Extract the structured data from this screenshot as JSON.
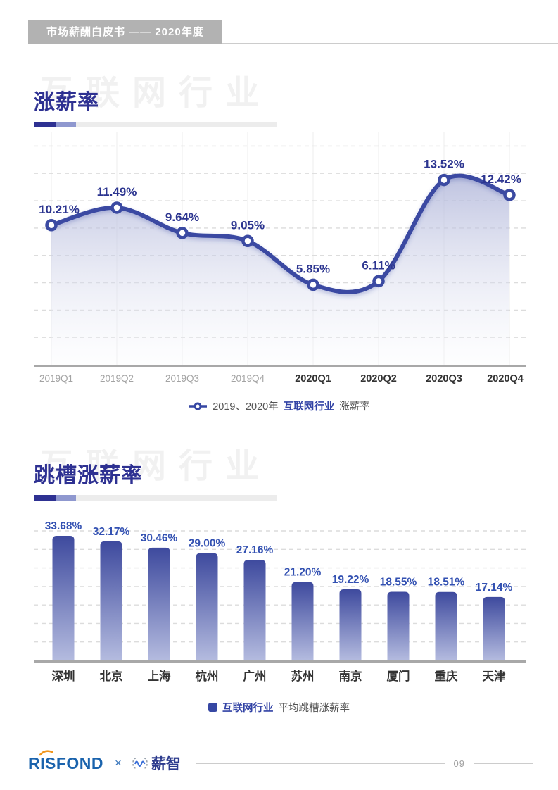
{
  "header": {
    "badge": "市场薪酬白皮书 —— 2020年度"
  },
  "sections": [
    {
      "watermark": "互联网行业",
      "title": "涨薪率"
    },
    {
      "watermark": "互联网行业",
      "title": "跳槽涨薪率"
    }
  ],
  "legend1": {
    "prefix": "2019、2020年",
    "accent": "互联网行业",
    "suffix": "涨薪率"
  },
  "legend2": {
    "accent": "互联网行业",
    "suffix": "平均跳槽涨薪率"
  },
  "footer": {
    "brand1": "RISFOND",
    "cross": "×",
    "brand2": "薪智",
    "page_number": "09"
  },
  "colors": {
    "accent_indigo": "#2e3192",
    "line": "#3b4aa2",
    "line_label": "#2c3590",
    "marker_fill": "#ffffff",
    "area_top": "#a9afd6",
    "area_bottom": "#f9fafd",
    "bar_top": "#3e4a9e",
    "bar_bottom": "#b4bbdf",
    "bar_label": "#3351b2",
    "grid_dashed": "#dcdcdc",
    "grid_vertical": "#f1f1f1",
    "axis": "#a8a8a8",
    "tick_muted": "#a3a3a3",
    "tick_strong": "#333333",
    "city_label": "#333333",
    "badge_bg": "#b2b2b2",
    "watermark": "#f1f1f1",
    "risfond_blue": "#1a63ad",
    "risfond_orange": "#f0961e",
    "xinzhi_navy": "#2c3b8d"
  },
  "chart_data": [
    {
      "type": "line",
      "title": "涨薪率",
      "legend": "2019、2020年 互联网行业 涨薪率",
      "categories": [
        "2019Q1",
        "2019Q2",
        "2019Q3",
        "2019Q4",
        "2020Q1",
        "2020Q2",
        "2020Q3",
        "2020Q4"
      ],
      "category_emphasis": [
        false,
        false,
        false,
        false,
        true,
        true,
        true,
        true
      ],
      "values": [
        10.21,
        11.49,
        9.64,
        9.05,
        5.85,
        6.11,
        13.52,
        12.42
      ],
      "labels": [
        "10.21%",
        "11.49%",
        "9.64%",
        "9.05%",
        "5.85%",
        "6.11%",
        "13.52%",
        "12.42%"
      ],
      "ylabel": "",
      "xlabel": "",
      "ylim": [
        0,
        17
      ],
      "grid_step": 2,
      "grid": "dashed-horizontal, faint-vertical",
      "legend_position": "bottom-center",
      "style": "smooth curve with open circle markers and gradient area fill"
    },
    {
      "type": "bar",
      "title": "跳槽涨薪率",
      "legend": "互联网行业 平均跳槽涨薪率",
      "categories": [
        "深圳",
        "北京",
        "上海",
        "杭州",
        "广州",
        "苏州",
        "南京",
        "厦门",
        "重庆",
        "天津"
      ],
      "values": [
        33.68,
        32.17,
        30.46,
        29.0,
        27.16,
        21.2,
        19.22,
        18.55,
        18.51,
        17.14
      ],
      "labels": [
        "33.68%",
        "32.17%",
        "30.46%",
        "29.00%",
        "27.16%",
        "21.20%",
        "19.22%",
        "18.55%",
        "18.51%",
        "17.14%"
      ],
      "ylabel": "",
      "xlabel": "",
      "ylim": [
        0,
        35
      ],
      "grid_step": 5,
      "grid": "dashed-horizontal",
      "legend_position": "bottom-center",
      "style": "rounded-top bars with vertical gradient, value labels above bars"
    }
  ]
}
